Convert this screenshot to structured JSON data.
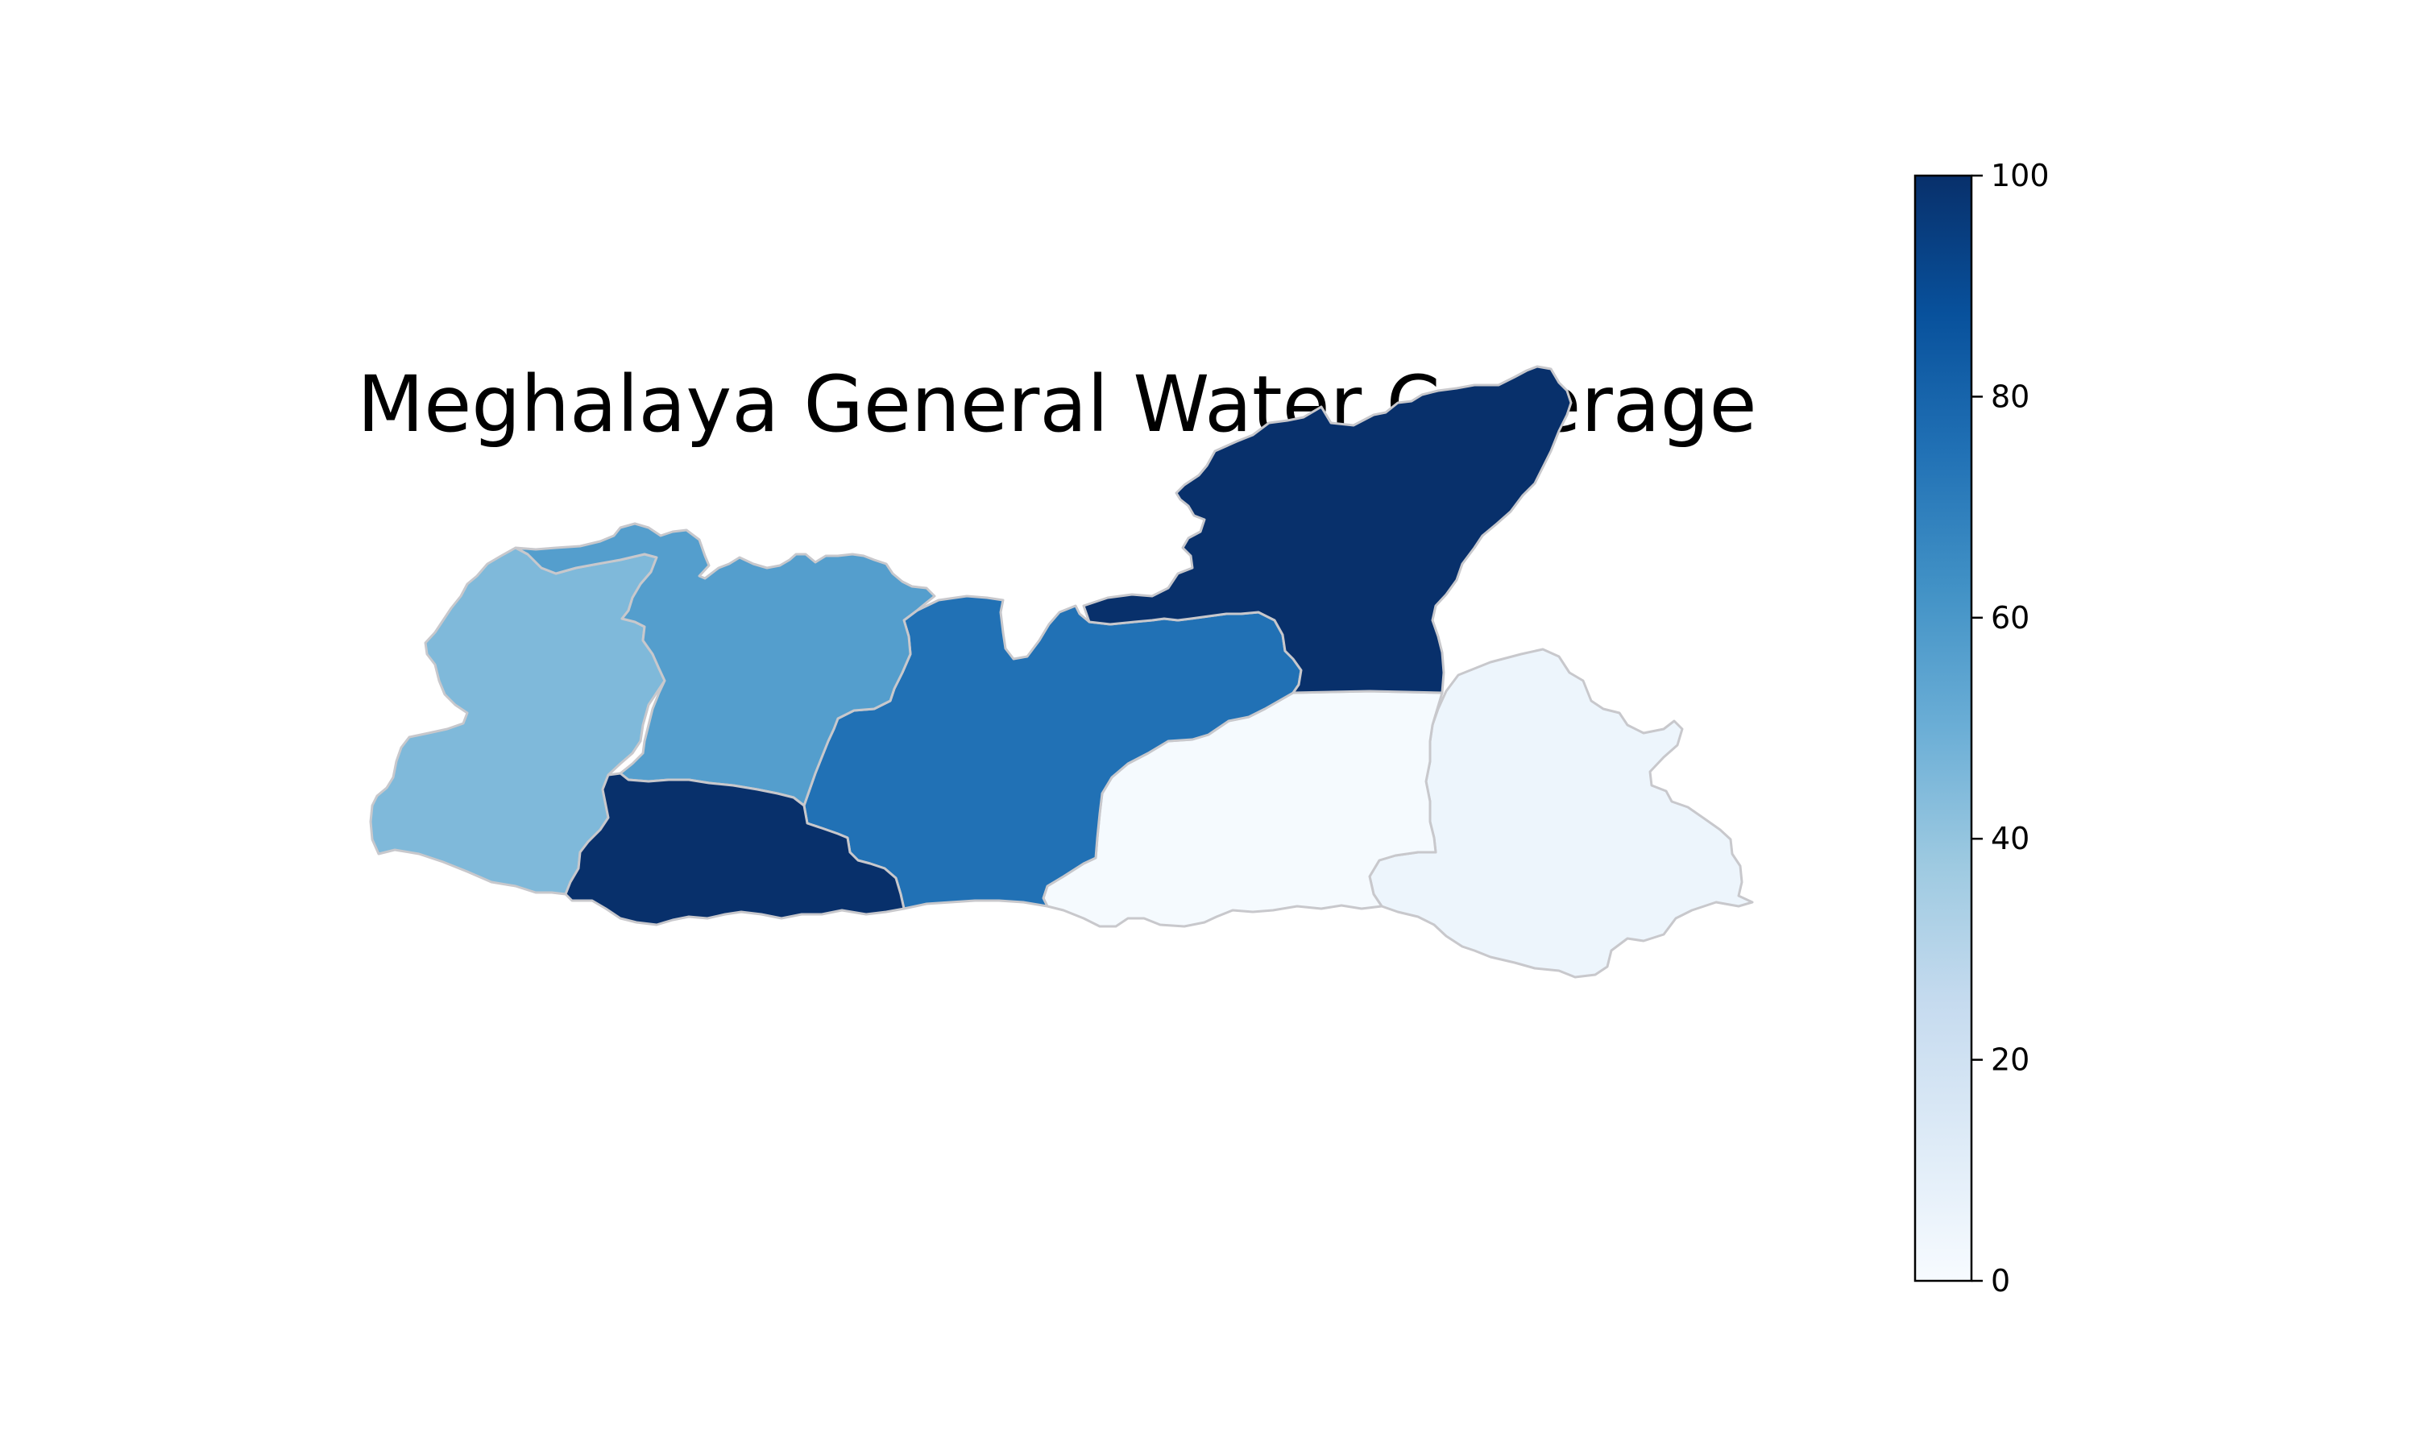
{
  "map": {
    "title": "Meghalaya General Water Coverage",
    "colormap": "Blues",
    "districts": [
      {
        "id": "west-garo-hills",
        "value": 45
      },
      {
        "id": "north-garo-hills",
        "value": 57
      },
      {
        "id": "south-garo-hills",
        "value": 100
      },
      {
        "id": "west-khasi-hills",
        "value": 75
      },
      {
        "id": "ri-bhoi",
        "value": 100
      },
      {
        "id": "east-khasi-hills",
        "value": 1
      },
      {
        "id": "jaintia-hills",
        "value": 5
      }
    ]
  },
  "colorbar": {
    "min": 0,
    "max": 100,
    "ticks": [
      "0",
      "20",
      "40",
      "60",
      "80",
      "100"
    ],
    "stops": [
      "#f7fbff",
      "#deebf7",
      "#c6dbef",
      "#9ecae1",
      "#6baed6",
      "#4292c6",
      "#2171b5",
      "#08519c",
      "#08306b"
    ]
  }
}
